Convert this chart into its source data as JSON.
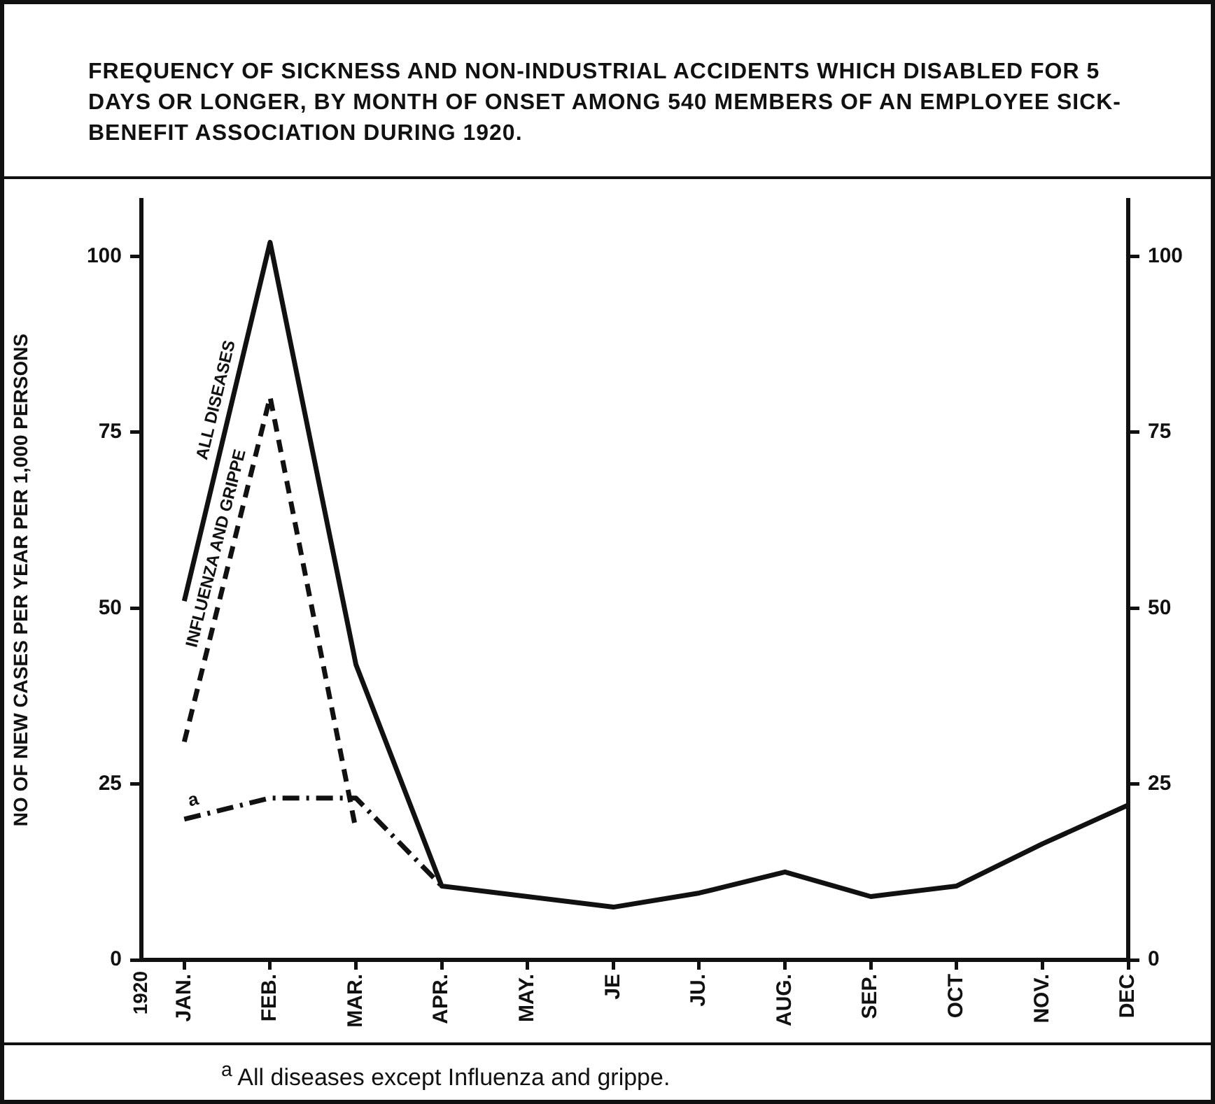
{
  "chart_data": {
    "type": "line",
    "title": "FREQUENCY OF SICKNESS AND NON-INDUSTRIAL ACCIDENTS WHICH DISABLED FOR 5 DAYS OR LONGER, BY MONTH OF ONSET AMONG 540 MEMBERS OF AN EMPLOYEE SICK-BENEFIT ASSOCIATION DURING 1920.",
    "ylabel": "NO OF NEW CASES PER YEAR PER 1,000 PERSONS",
    "categories": [
      "JAN.",
      "FEB.",
      "MAR.",
      "APR.",
      "MAY.",
      "JE",
      "JU.",
      "AUG.",
      "SEP.",
      "OCT",
      "NOV.",
      "DEC"
    ],
    "series": [
      {
        "name": "ALL DISEASES",
        "color": "#111111",
        "line_style": "solid",
        "values": [
          51,
          102,
          42,
          10.5,
          9,
          7.5,
          9.5,
          12.5,
          9,
          10.5,
          16.5,
          22
        ]
      },
      {
        "name": "INFLUENZA AND GRIPPE",
        "color": "#111111",
        "line_style": "dashed",
        "values": [
          31,
          80,
          18.5,
          null,
          null,
          null,
          null,
          null,
          null,
          null,
          null,
          null
        ]
      },
      {
        "name": "a",
        "color": "#111111",
        "line_style": "dashdot",
        "values": [
          20,
          23,
          23,
          10.5,
          null,
          null,
          null,
          null,
          null,
          null,
          null,
          null
        ]
      }
    ],
    "ylim": [
      0,
      108
    ],
    "yticks": [
      0,
      25,
      50,
      75,
      100
    ],
    "y2lim": [
      0,
      108
    ],
    "y2ticks": [
      0,
      25,
      50,
      75,
      100
    ],
    "grid": false,
    "legend": false,
    "marker": "none",
    "annotations": [
      "1920",
      "$^{a}$ All diseases except Influenza and grippe."
    ]
  }
}
